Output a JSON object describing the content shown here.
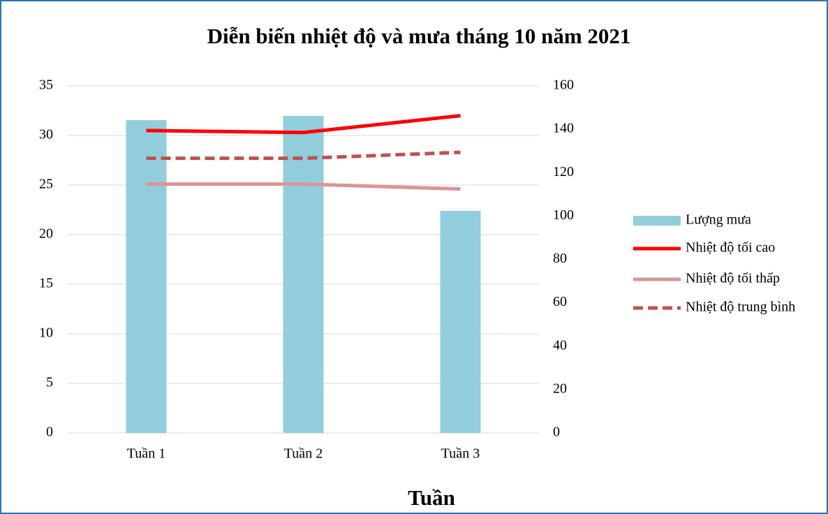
{
  "chart_data": {
    "type": "combo",
    "title": "Diễn biến nhiệt độ và mưa tháng 10 năm 2021",
    "x_label": "Tuần",
    "categories": [
      "Tuần 1",
      "Tuần 2",
      "Tuần 3"
    ],
    "series": [
      {
        "name": "Lượng mưa",
        "type": "bar",
        "axis": "y2",
        "color": "#92cddc",
        "values": [
          144.2,
          146.2,
          102.4
        ]
      },
      {
        "name": "Nhiệt độ tối cao",
        "type": "line",
        "color": "#ff0000",
        "values": [
          30.5,
          30.3,
          32.0
        ]
      },
      {
        "name": "Nhiệt độ tối thấp",
        "type": "line",
        "color": "#d99694",
        "values": [
          25.1,
          25.1,
          24.6
        ]
      },
      {
        "name": "Nhiệt độ trung bình",
        "type": "line",
        "dashed": true,
        "color": "#c0504d",
        "values": [
          27.7,
          27.7,
          28.3
        ]
      }
    ],
    "ylim": [
      0,
      35
    ],
    "yticks": [
      0,
      5,
      10,
      15,
      20,
      25,
      30,
      35
    ],
    "y2lim": [
      0,
      160
    ],
    "y2ticks": [
      0,
      20,
      40,
      60,
      80,
      100,
      120,
      140,
      160
    ],
    "grid": true,
    "legend": "right"
  }
}
